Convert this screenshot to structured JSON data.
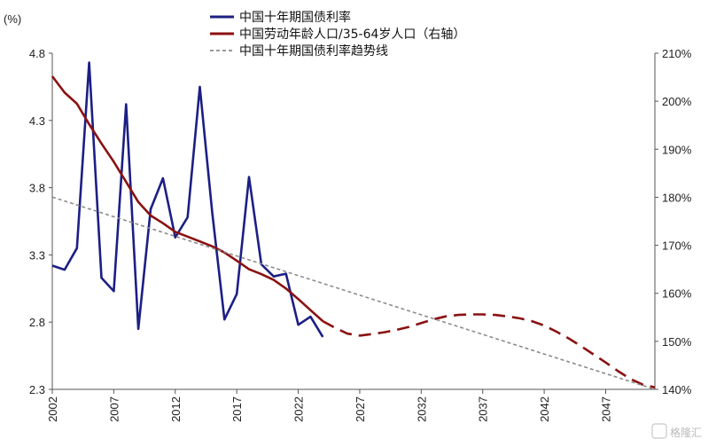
{
  "chart_data": {
    "type": "line",
    "left_unit": "(%)",
    "x_ticks": [
      2002,
      2007,
      2012,
      2017,
      2022,
      2027,
      2032,
      2037,
      2042,
      2047
    ],
    "xlim": [
      2002,
      2051
    ],
    "y_left": {
      "ylim": [
        2.3,
        4.8
      ],
      "ticks": [
        "2.3",
        "2.8",
        "3.3",
        "3.8",
        "4.3",
        "4.8"
      ]
    },
    "y_right": {
      "ylim": [
        140,
        210
      ],
      "ticks": [
        "140%",
        "150%",
        "160%",
        "170%",
        "180%",
        "190%",
        "200%",
        "210%"
      ]
    },
    "series": [
      {
        "name": "中国十年期国债利率",
        "axis": "left",
        "color": "#1c1f84",
        "style": "solid",
        "x": [
          2002,
          2003,
          2004,
          2005,
          2006,
          2007,
          2008,
          2009,
          2010,
          2011,
          2012,
          2013,
          2014,
          2015,
          2016,
          2017,
          2018,
          2019,
          2020,
          2021,
          2022,
          2023,
          2024
        ],
        "y": [
          3.22,
          3.19,
          3.35,
          4.73,
          3.13,
          3.03,
          4.42,
          2.75,
          3.64,
          3.87,
          3.43,
          3.58,
          4.55,
          3.62,
          2.82,
          3.01,
          3.88,
          3.23,
          3.14,
          3.16,
          2.78,
          2.84,
          2.69
        ]
      },
      {
        "name": "中国劳动年龄人口/35-64岁人口（右轴）",
        "axis": "right",
        "color": "#8b1111",
        "style": "solid",
        "x": [
          2002,
          2003,
          2004,
          2005,
          2006,
          2007,
          2008,
          2009,
          2010,
          2011,
          2012,
          2013,
          2014,
          2015,
          2016,
          2017,
          2018,
          2019,
          2020,
          2021,
          2022,
          2023,
          2024
        ],
        "y": [
          205.2,
          201.8,
          199.5,
          195.2,
          191.2,
          187.4,
          183.2,
          179.0,
          176.2,
          174.6,
          172.8,
          171.8,
          170.8,
          169.8,
          168.5,
          166.8,
          165.0,
          164.0,
          162.8,
          161.0,
          158.8,
          156.5,
          154.2
        ]
      },
      {
        "name": "中国劳动年龄人口/35-64岁人口（右轴）",
        "axis": "right",
        "color": "#8b1111",
        "style": "dashed",
        "x": [
          2024,
          2025,
          2026,
          2027,
          2028,
          2029,
          2030,
          2031,
          2032,
          2033,
          2034,
          2035,
          2036,
          2037,
          2038,
          2039,
          2040,
          2041,
          2042,
          2043,
          2044,
          2045,
          2046,
          2047,
          2048,
          2049,
          2050,
          2051
        ],
        "y": [
          154.2,
          152.8,
          151.6,
          151.2,
          151.5,
          151.9,
          152.4,
          153.0,
          153.8,
          154.6,
          155.2,
          155.5,
          155.6,
          155.6,
          155.5,
          155.2,
          154.8,
          154.2,
          153.3,
          152.0,
          150.6,
          149.0,
          147.3,
          145.6,
          143.8,
          142.2,
          141.0,
          140.4
        ]
      },
      {
        "name": "中国十年期国债利率趋势线",
        "axis": "left",
        "color": "#8c8c8c",
        "style": "dashed",
        "x": [
          2002,
          2051
        ],
        "y": [
          3.73,
          2.3
        ]
      }
    ],
    "legend": {
      "placement": "top-center",
      "items": [
        {
          "label": "中国十年期国债利率",
          "color": "#1c1f84",
          "style": "solid"
        },
        {
          "label": "中国劳动年龄人口/35-64岁人口（右轴）",
          "color": "#8b1111",
          "style": "solid"
        },
        {
          "label": "中国十年期国债利率趋势线",
          "color": "#8c8c8c",
          "style": "dashed"
        }
      ]
    }
  },
  "watermark": "格隆汇"
}
